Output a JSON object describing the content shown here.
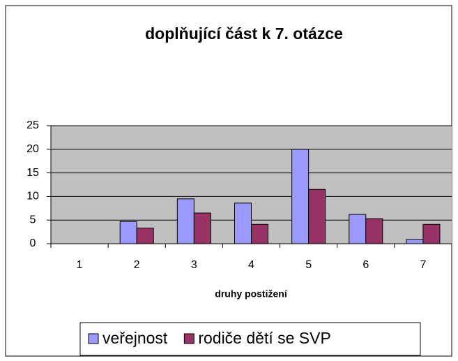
{
  "chart_data": {
    "type": "bar",
    "title": "doplňující část k 7. otázce",
    "x_label": "druhy postižení",
    "categories": [
      "1",
      "2",
      "3",
      "4",
      "5",
      "6",
      "7"
    ],
    "series": [
      {
        "name": "veřejnost",
        "color": "#9999ff",
        "values": [
          0,
          4.7,
          9.5,
          8.6,
          20,
          6.2,
          0.9
        ]
      },
      {
        "name": "rodiče dětí se SVP",
        "color": "#993366",
        "values": [
          0,
          3.3,
          6.5,
          4.1,
          11.5,
          5.3,
          4.1
        ]
      }
    ],
    "ylim": [
      0,
      25
    ],
    "yticks": [
      0,
      5,
      10,
      15,
      20,
      25
    ],
    "grid": true,
    "legend": "bottom"
  }
}
